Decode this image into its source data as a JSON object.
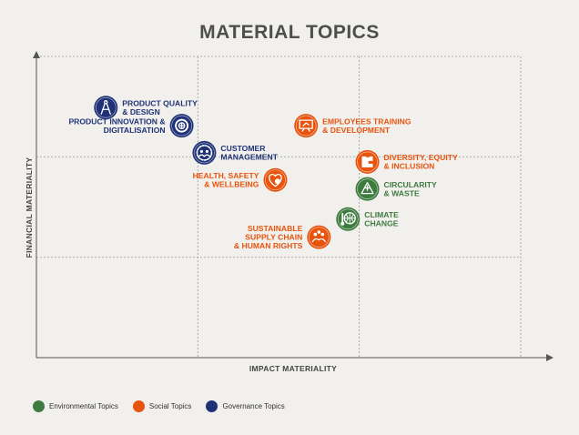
{
  "title": "MATERIAL TOPICS",
  "axes": {
    "x_label": "IMPACT MATERIALITY",
    "y_label": "FINANCIAL MATERIALITY"
  },
  "colors": {
    "environmental": "#3e7b3f",
    "social": "#e8530e",
    "governance": "#1f3277"
  },
  "legend": [
    {
      "label": "Environmental Topics",
      "category": "environmental"
    },
    {
      "label": "Social Topics",
      "category": "social"
    },
    {
      "label": "Governance Topics",
      "category": "governance"
    }
  ],
  "chart_data": {
    "type": "scatter",
    "grid": true,
    "topics": [
      {
        "lines": [
          "PRODUCT QUALITY",
          "& DESIGN"
        ],
        "category": "governance",
        "icon": "compass-icon",
        "side": "right",
        "x": 0.43,
        "y": 0.83
      },
      {
        "lines": [
          "PRODUCT INNOVATION &",
          "DIGITALISATION"
        ],
        "category": "governance",
        "icon": "innovation-gear-icon",
        "side": "left",
        "x": 0.9,
        "y": 0.77
      },
      {
        "lines": [
          "CUSTOMER",
          "MANAGEMENT"
        ],
        "category": "governance",
        "icon": "people-gear-icon",
        "side": "right",
        "x": 1.04,
        "y": 0.68
      },
      {
        "lines": [
          "EMPLOYEES TRAINING",
          "& DEVELOPMENT"
        ],
        "category": "social",
        "icon": "presentation-icon",
        "side": "right",
        "x": 1.67,
        "y": 0.77
      },
      {
        "lines": [
          "DIVERSITY, EQUITY",
          "& INCLUSION"
        ],
        "category": "social",
        "icon": "puzzle-icon",
        "side": "right",
        "x": 2.05,
        "y": 0.65
      },
      {
        "lines": [
          "HEALTH, SAFETY",
          "& WELLBEING"
        ],
        "category": "social",
        "icon": "heart-plus-icon",
        "side": "left",
        "x": 1.48,
        "y": 0.59
      },
      {
        "lines": [
          "CIRCULARITY",
          "& WASTE"
        ],
        "category": "environmental",
        "icon": "recycle-icon",
        "side": "right",
        "x": 2.05,
        "y": 0.56
      },
      {
        "lines": [
          "CLIMATE",
          "CHANGE"
        ],
        "category": "environmental",
        "icon": "globe-thermometer-icon",
        "side": "right",
        "x": 1.93,
        "y": 0.46
      },
      {
        "lines": [
          "SUSTAINABLE",
          "SUPPLY CHAIN",
          "& HUMAN RIGHTS"
        ],
        "category": "social",
        "icon": "supply-chain-icon",
        "side": "left",
        "x": 1.75,
        "y": 0.4
      }
    ]
  }
}
